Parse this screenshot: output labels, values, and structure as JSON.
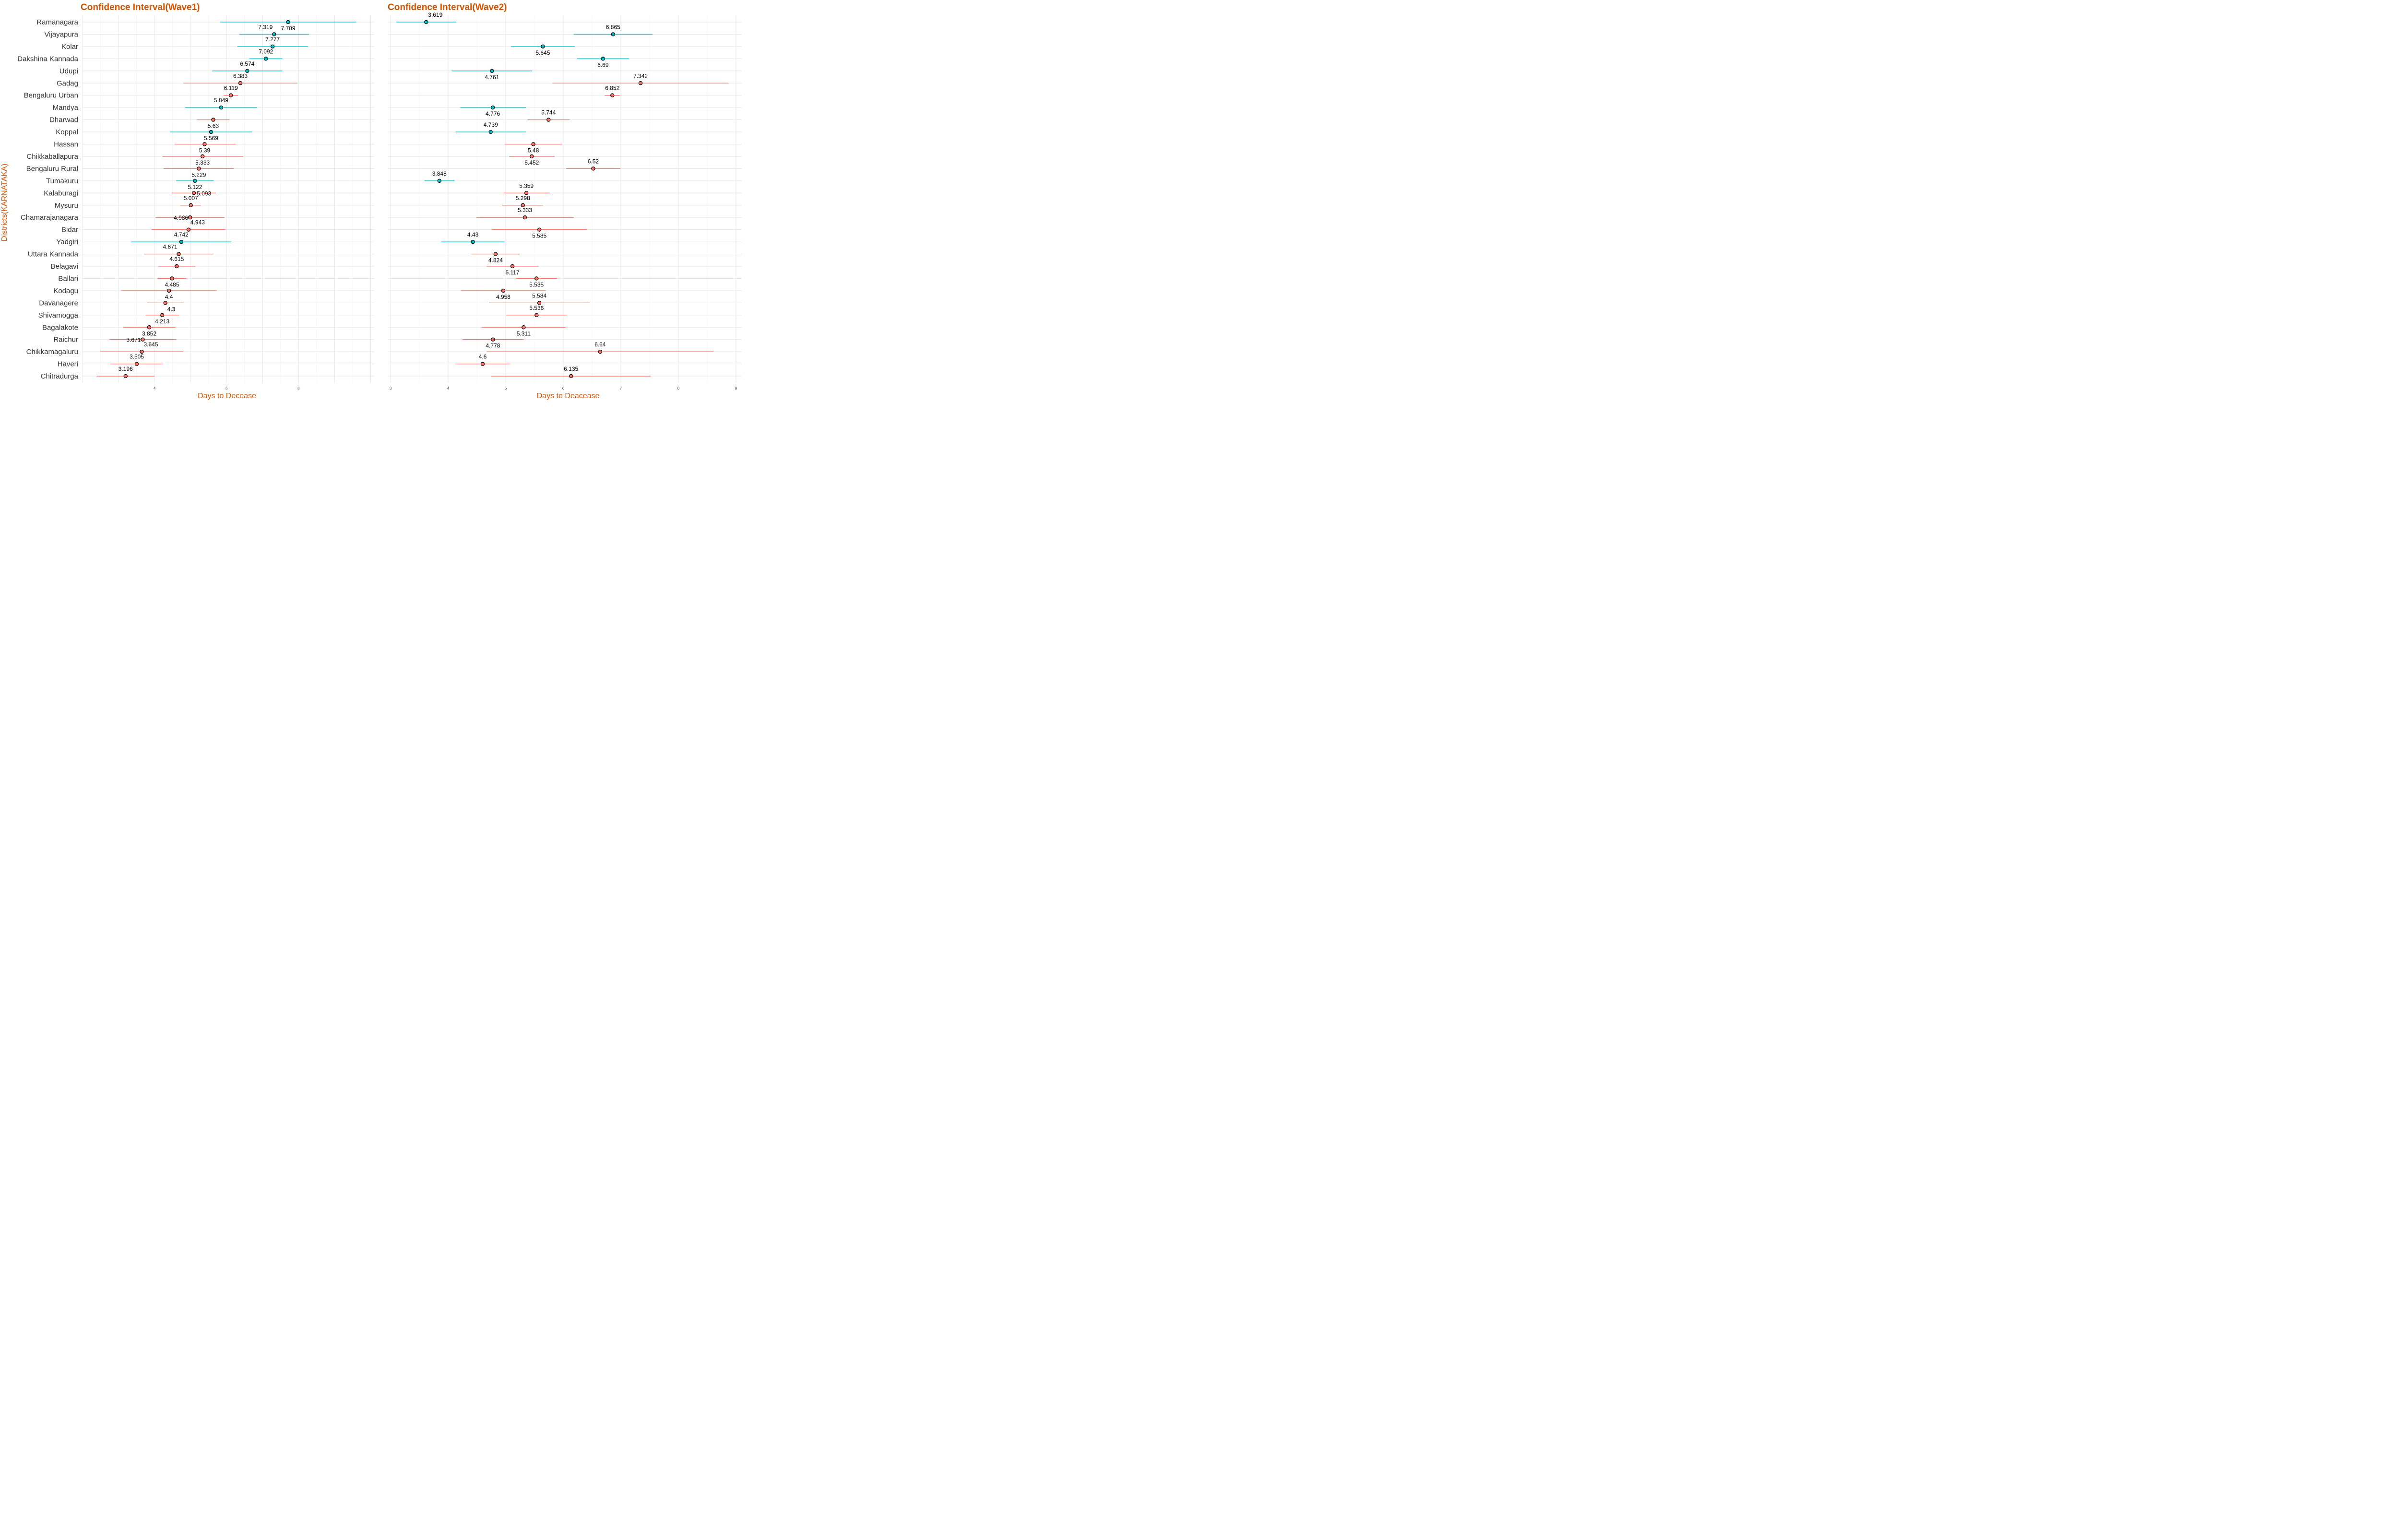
{
  "colors": {
    "increase": "#F8766D",
    "decrease": "#00BFC4",
    "title": "#D35400"
  },
  "districts_axis_label": "Districts(KARNATAKA)",
  "chart_data": [
    {
      "type": "errorbar",
      "title": "Confidence Interval(Wave1)",
      "xlabel": "Days to Decease",
      "ylabel": "Districts(KARNATAKA)",
      "xlim": [
        2.0,
        10.1
      ],
      "xticks": [
        4,
        6,
        8
      ],
      "grid": true,
      "points": [
        {
          "district": "Ramanagara",
          "value": 7.709,
          "low": 5.82,
          "high": 9.6,
          "group": "decrease",
          "label_pos": "below"
        },
        {
          "district": "Vijayapura",
          "value": 7.319,
          "low": 6.35,
          "high": 8.29,
          "group": "decrease",
          "label_pos": "above-left"
        },
        {
          "district": "Kolar",
          "value": 7.277,
          "low": 6.3,
          "high": 8.26,
          "group": "decrease",
          "label_pos": "above"
        },
        {
          "district": "Dakshina Kannada",
          "value": 7.092,
          "low": 6.63,
          "high": 7.55,
          "group": "decrease",
          "label_pos": "above"
        },
        {
          "district": "Udupi",
          "value": 6.574,
          "low": 5.6,
          "high": 7.55,
          "group": "decrease",
          "label_pos": "above"
        },
        {
          "district": "Gadag",
          "value": 6.383,
          "low": 4.8,
          "high": 7.97,
          "group": "increase",
          "label_pos": "above"
        },
        {
          "district": "Bengaluru Urban",
          "value": 6.119,
          "low": 5.92,
          "high": 6.32,
          "group": "increase",
          "label_pos": "above"
        },
        {
          "district": "Mandya",
          "value": 5.849,
          "low": 4.85,
          "high": 6.85,
          "group": "decrease",
          "label_pos": "above"
        },
        {
          "district": "Dharwad",
          "value": 5.63,
          "low": 5.18,
          "high": 6.08,
          "group": "increase",
          "label_pos": "below"
        },
        {
          "district": "Koppal",
          "value": 5.569,
          "low": 4.43,
          "high": 6.71,
          "group": "decrease",
          "label_pos": "below"
        },
        {
          "district": "Hassan",
          "value": 5.39,
          "low": 4.55,
          "high": 6.25,
          "group": "increase",
          "label_pos": "below"
        },
        {
          "district": "Chikkaballapura",
          "value": 5.333,
          "low": 4.22,
          "high": 6.46,
          "group": "increase",
          "label_pos": "below"
        },
        {
          "district": "Bengaluru Rural",
          "value": 5.229,
          "low": 4.25,
          "high": 6.2,
          "group": "increase",
          "label_pos": "below"
        },
        {
          "district": "Tumakuru",
          "value": 5.122,
          "low": 4.6,
          "high": 5.64,
          "group": "decrease",
          "label_pos": "below"
        },
        {
          "district": "Kalaburagi",
          "value": 5.093,
          "low": 4.48,
          "high": 5.7,
          "group": "increase",
          "label_pos": "right"
        },
        {
          "district": "Mysuru",
          "value": 5.007,
          "low": 4.72,
          "high": 5.29,
          "group": "increase",
          "label_pos": "above"
        },
        {
          "district": "Chamarajanagara",
          "value": 4.986,
          "low": 4.03,
          "high": 5.94,
          "group": "increase",
          "label_pos": "left"
        },
        {
          "district": "Bidar",
          "value": 4.943,
          "low": 3.92,
          "high": 5.97,
          "group": "increase",
          "label_pos": "above-right"
        },
        {
          "district": "Yadgiri",
          "value": 4.742,
          "low": 3.35,
          "high": 6.13,
          "group": "decrease",
          "label_pos": "above"
        },
        {
          "district": "Uttara Kannada",
          "value": 4.671,
          "low": 3.7,
          "high": 5.64,
          "group": "increase",
          "label_pos": "above-left"
        },
        {
          "district": "Belagavi",
          "value": 4.615,
          "low": 4.1,
          "high": 5.13,
          "group": "increase",
          "label_pos": "above"
        },
        {
          "district": "Ballari",
          "value": 4.485,
          "low": 4.09,
          "high": 4.88,
          "group": "increase",
          "label_pos": "below"
        },
        {
          "district": "Kodagu",
          "value": 4.4,
          "low": 3.07,
          "high": 5.73,
          "group": "increase",
          "label_pos": "below"
        },
        {
          "district": "Davanagere",
          "value": 4.3,
          "low": 3.79,
          "high": 4.81,
          "group": "increase",
          "label_pos": "below-right"
        },
        {
          "district": "Shivamogga",
          "value": 4.213,
          "low": 3.75,
          "high": 4.68,
          "group": "increase",
          "label_pos": "below"
        },
        {
          "district": "Bagalakote",
          "value": 3.852,
          "low": 3.13,
          "high": 4.58,
          "group": "increase",
          "label_pos": "below"
        },
        {
          "district": "Raichur",
          "value": 3.671,
          "low": 2.75,
          "high": 4.6,
          "group": "increase",
          "label_pos": "left"
        },
        {
          "district": "Chikkamagaluru",
          "value": 3.645,
          "low": 2.49,
          "high": 4.8,
          "group": "increase",
          "label_pos": "above-right"
        },
        {
          "district": "Haveri",
          "value": 3.505,
          "low": 2.77,
          "high": 4.24,
          "group": "increase",
          "label_pos": "above"
        },
        {
          "district": "Chitradurga",
          "value": 3.196,
          "low": 2.39,
          "high": 4.0,
          "group": "increase",
          "label_pos": "above"
        }
      ]
    },
    {
      "type": "errorbar",
      "title": "Confidence Interval(Wave2)",
      "xlabel": "Days to Deacease",
      "ylabel": "",
      "xlim": [
        2.95,
        9.1
      ],
      "xticks": [
        3,
        4,
        5,
        6,
        7,
        8,
        9
      ],
      "grid": true,
      "points": [
        {
          "district": "Ramanagara",
          "value": 3.619,
          "low": 3.1,
          "high": 4.14,
          "group": "decrease",
          "label_pos": "above-right"
        },
        {
          "district": "Vijayapura",
          "value": 6.865,
          "low": 6.18,
          "high": 7.55,
          "group": "decrease",
          "label_pos": "above"
        },
        {
          "district": "Kolar",
          "value": 5.645,
          "low": 5.09,
          "high": 6.2,
          "group": "decrease",
          "label_pos": "below"
        },
        {
          "district": "Dakshina Kannada",
          "value": 6.69,
          "low": 6.24,
          "high": 7.14,
          "group": "decrease",
          "label_pos": "below"
        },
        {
          "district": "Udupi",
          "value": 4.761,
          "low": 4.06,
          "high": 5.46,
          "group": "decrease",
          "label_pos": "below"
        },
        {
          "district": "Gadag",
          "value": 7.342,
          "low": 5.81,
          "high": 8.87,
          "group": "increase",
          "label_pos": "above"
        },
        {
          "district": "Bengaluru Urban",
          "value": 6.852,
          "low": 6.72,
          "high": 6.98,
          "group": "increase",
          "label_pos": "above"
        },
        {
          "district": "Mandya",
          "value": 4.776,
          "low": 4.21,
          "high": 5.35,
          "group": "decrease",
          "label_pos": "below"
        },
        {
          "district": "Dharwad",
          "value": 5.744,
          "low": 5.38,
          "high": 6.11,
          "group": "increase",
          "label_pos": "above"
        },
        {
          "district": "Koppal",
          "value": 4.739,
          "low": 4.13,
          "high": 5.35,
          "group": "decrease",
          "label_pos": "above"
        },
        {
          "district": "Hassan",
          "value": 5.48,
          "low": 4.98,
          "high": 5.98,
          "group": "increase",
          "label_pos": "below"
        },
        {
          "district": "Chikkaballapura",
          "value": 5.452,
          "low": 5.06,
          "high": 5.85,
          "group": "increase",
          "label_pos": "below"
        },
        {
          "district": "Bengaluru Rural",
          "value": 6.52,
          "low": 6.05,
          "high": 6.99,
          "group": "increase",
          "label_pos": "above"
        },
        {
          "district": "Tumakuru",
          "value": 3.848,
          "low": 3.59,
          "high": 4.11,
          "group": "decrease",
          "label_pos": "above"
        },
        {
          "district": "Kalaburagi",
          "value": 5.359,
          "low": 4.96,
          "high": 5.76,
          "group": "increase",
          "label_pos": "above"
        },
        {
          "district": "Mysuru",
          "value": 5.298,
          "low": 4.94,
          "high": 5.65,
          "group": "increase",
          "label_pos": "above"
        },
        {
          "district": "Chamarajanagara",
          "value": 5.333,
          "low": 4.49,
          "high": 6.18,
          "group": "increase",
          "label_pos": "above"
        },
        {
          "district": "Bidar",
          "value": 5.585,
          "low": 4.76,
          "high": 6.41,
          "group": "increase",
          "label_pos": "below"
        },
        {
          "district": "Yadgiri",
          "value": 4.43,
          "low": 3.88,
          "high": 4.98,
          "group": "decrease",
          "label_pos": "above"
        },
        {
          "district": "Uttara Kannada",
          "value": 4.824,
          "low": 4.41,
          "high": 5.24,
          "group": "increase",
          "label_pos": "below"
        },
        {
          "district": "Belagavi",
          "value": 5.117,
          "low": 4.67,
          "high": 5.57,
          "group": "increase",
          "label_pos": "below"
        },
        {
          "district": "Ballari",
          "value": 5.535,
          "low": 5.18,
          "high": 5.89,
          "group": "increase",
          "label_pos": "below"
        },
        {
          "district": "Kodagu",
          "value": 4.958,
          "low": 4.22,
          "high": 5.7,
          "group": "increase",
          "label_pos": "below"
        },
        {
          "district": "Davanagere",
          "value": 5.584,
          "low": 4.71,
          "high": 6.46,
          "group": "increase",
          "label_pos": "above"
        },
        {
          "district": "Shivamogga",
          "value": 5.536,
          "low": 5.01,
          "high": 6.06,
          "group": "increase",
          "label_pos": "above"
        },
        {
          "district": "Bagalakote",
          "value": 5.311,
          "low": 4.58,
          "high": 6.04,
          "group": "increase",
          "label_pos": "below"
        },
        {
          "district": "Raichur",
          "value": 4.778,
          "low": 4.25,
          "high": 5.31,
          "group": "increase",
          "label_pos": "below"
        },
        {
          "district": "Chikkamagaluru",
          "value": 6.64,
          "low": 4.67,
          "high": 8.61,
          "group": "increase",
          "label_pos": "above"
        },
        {
          "district": "Haveri",
          "value": 4.6,
          "low": 4.12,
          "high": 5.08,
          "group": "increase",
          "label_pos": "above"
        },
        {
          "district": "Chitradurga",
          "value": 6.135,
          "low": 4.75,
          "high": 7.52,
          "group": "increase",
          "label_pos": "above"
        }
      ]
    }
  ]
}
